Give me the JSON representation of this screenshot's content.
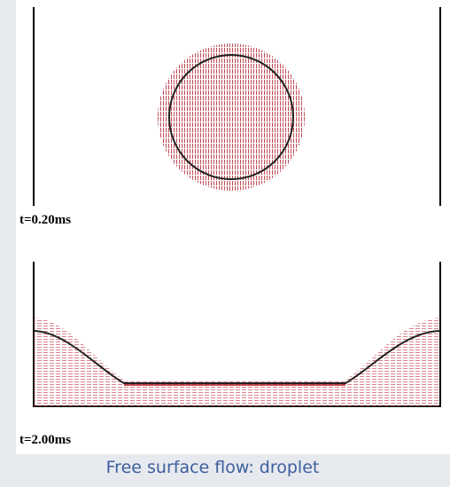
{
  "panels": [
    {
      "label": "t=0.20ms"
    },
    {
      "label": "t=2.00ms"
    }
  ],
  "caption": "Free surface flow: droplet"
}
